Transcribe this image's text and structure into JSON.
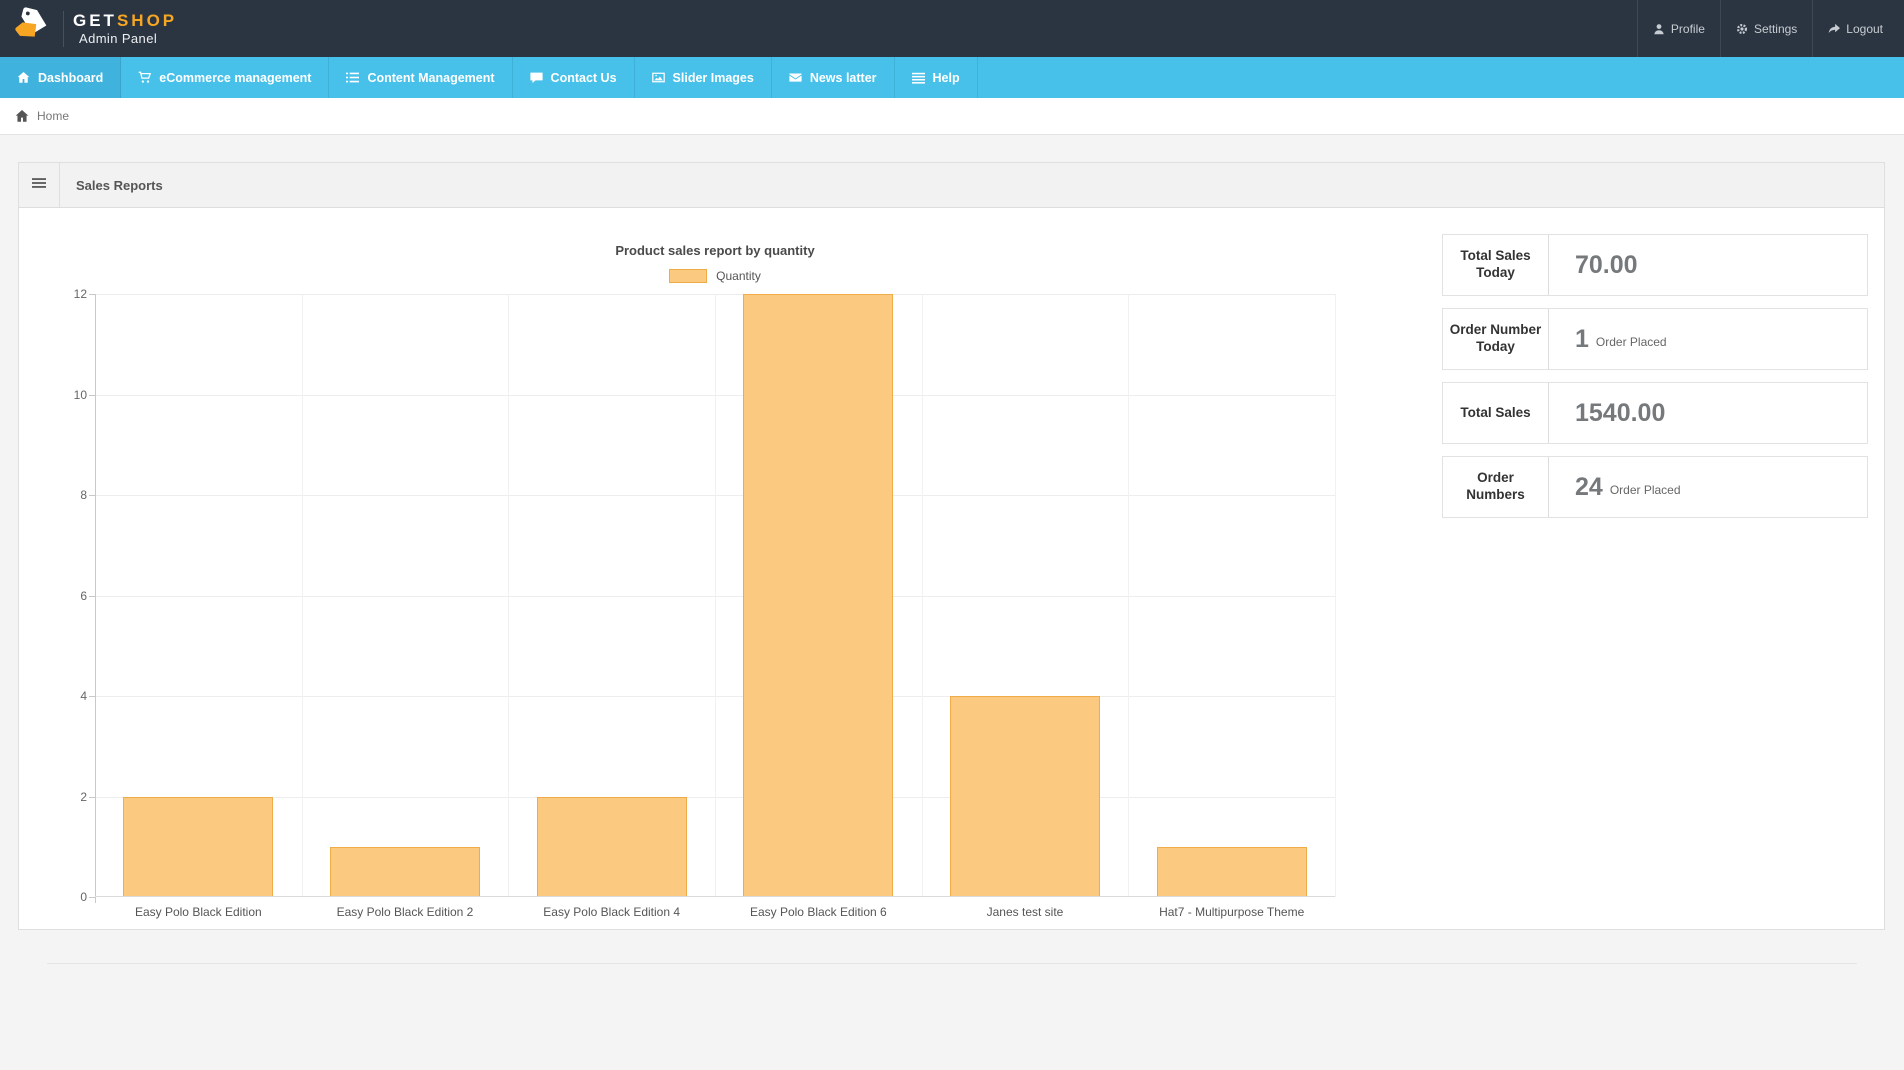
{
  "theme": {
    "topbar_bg": "#2B3542",
    "accent": "#47C1EA",
    "accent_active": "#3FB3DD",
    "brand_orange": "#F6A623"
  },
  "topbar": {
    "brand": {
      "get": "GET",
      "shop": "SHOP",
      "subtitle": "Admin Panel"
    },
    "menu": [
      {
        "label": "Profile",
        "icon": "person-icon"
      },
      {
        "label": "Settings",
        "icon": "gear-icon"
      },
      {
        "label": "Logout",
        "icon": "logout-arrow-icon"
      }
    ]
  },
  "navbar": {
    "items": [
      {
        "label": "Dashboard",
        "icon": "home-icon",
        "active": true
      },
      {
        "label": "eCommerce management",
        "icon": "cart-icon",
        "active": false
      },
      {
        "label": "Content Management",
        "icon": "list-icon",
        "active": false
      },
      {
        "label": "Contact Us",
        "icon": "comment-icon",
        "active": false
      },
      {
        "label": "Slider Images",
        "icon": "image-icon",
        "active": false
      },
      {
        "label": "News latter",
        "icon": "envelope-icon",
        "active": false
      },
      {
        "label": "Help",
        "icon": "menu-icon",
        "active": false
      }
    ]
  },
  "breadcrumb": {
    "home": "Home"
  },
  "panel": {
    "title": "Sales Reports"
  },
  "chart_data": {
    "type": "bar",
    "title": "Product sales report by quantity",
    "categories": [
      "Easy Polo Black Edition",
      "Easy Polo Black Edition 2",
      "Easy Polo Black Edition 4",
      "Easy Polo Black Edition 6",
      "Janes test site",
      "Hat7 - Multipurpose Theme"
    ],
    "series": [
      {
        "name": "Quantity",
        "values": [
          2,
          1,
          2,
          12,
          4,
          1
        ]
      }
    ],
    "xlabel": "",
    "ylabel": "",
    "ylim": [
      0,
      12
    ],
    "yticks": [
      0,
      2,
      4,
      6,
      8,
      10,
      12
    ],
    "grid": true,
    "legend_position": "top",
    "bar_fill": "#FBC97F",
    "bar_border": "#EFAC49"
  },
  "stats": [
    {
      "label": "Total Sales Today",
      "value": "70.00",
      "suffix": ""
    },
    {
      "label": "Order Number Today",
      "value": "1",
      "suffix": "Order Placed"
    },
    {
      "label": "Total Sales",
      "value": "1540.00",
      "suffix": ""
    },
    {
      "label": "Order Numbers",
      "value": "24",
      "suffix": "Order Placed"
    }
  ]
}
